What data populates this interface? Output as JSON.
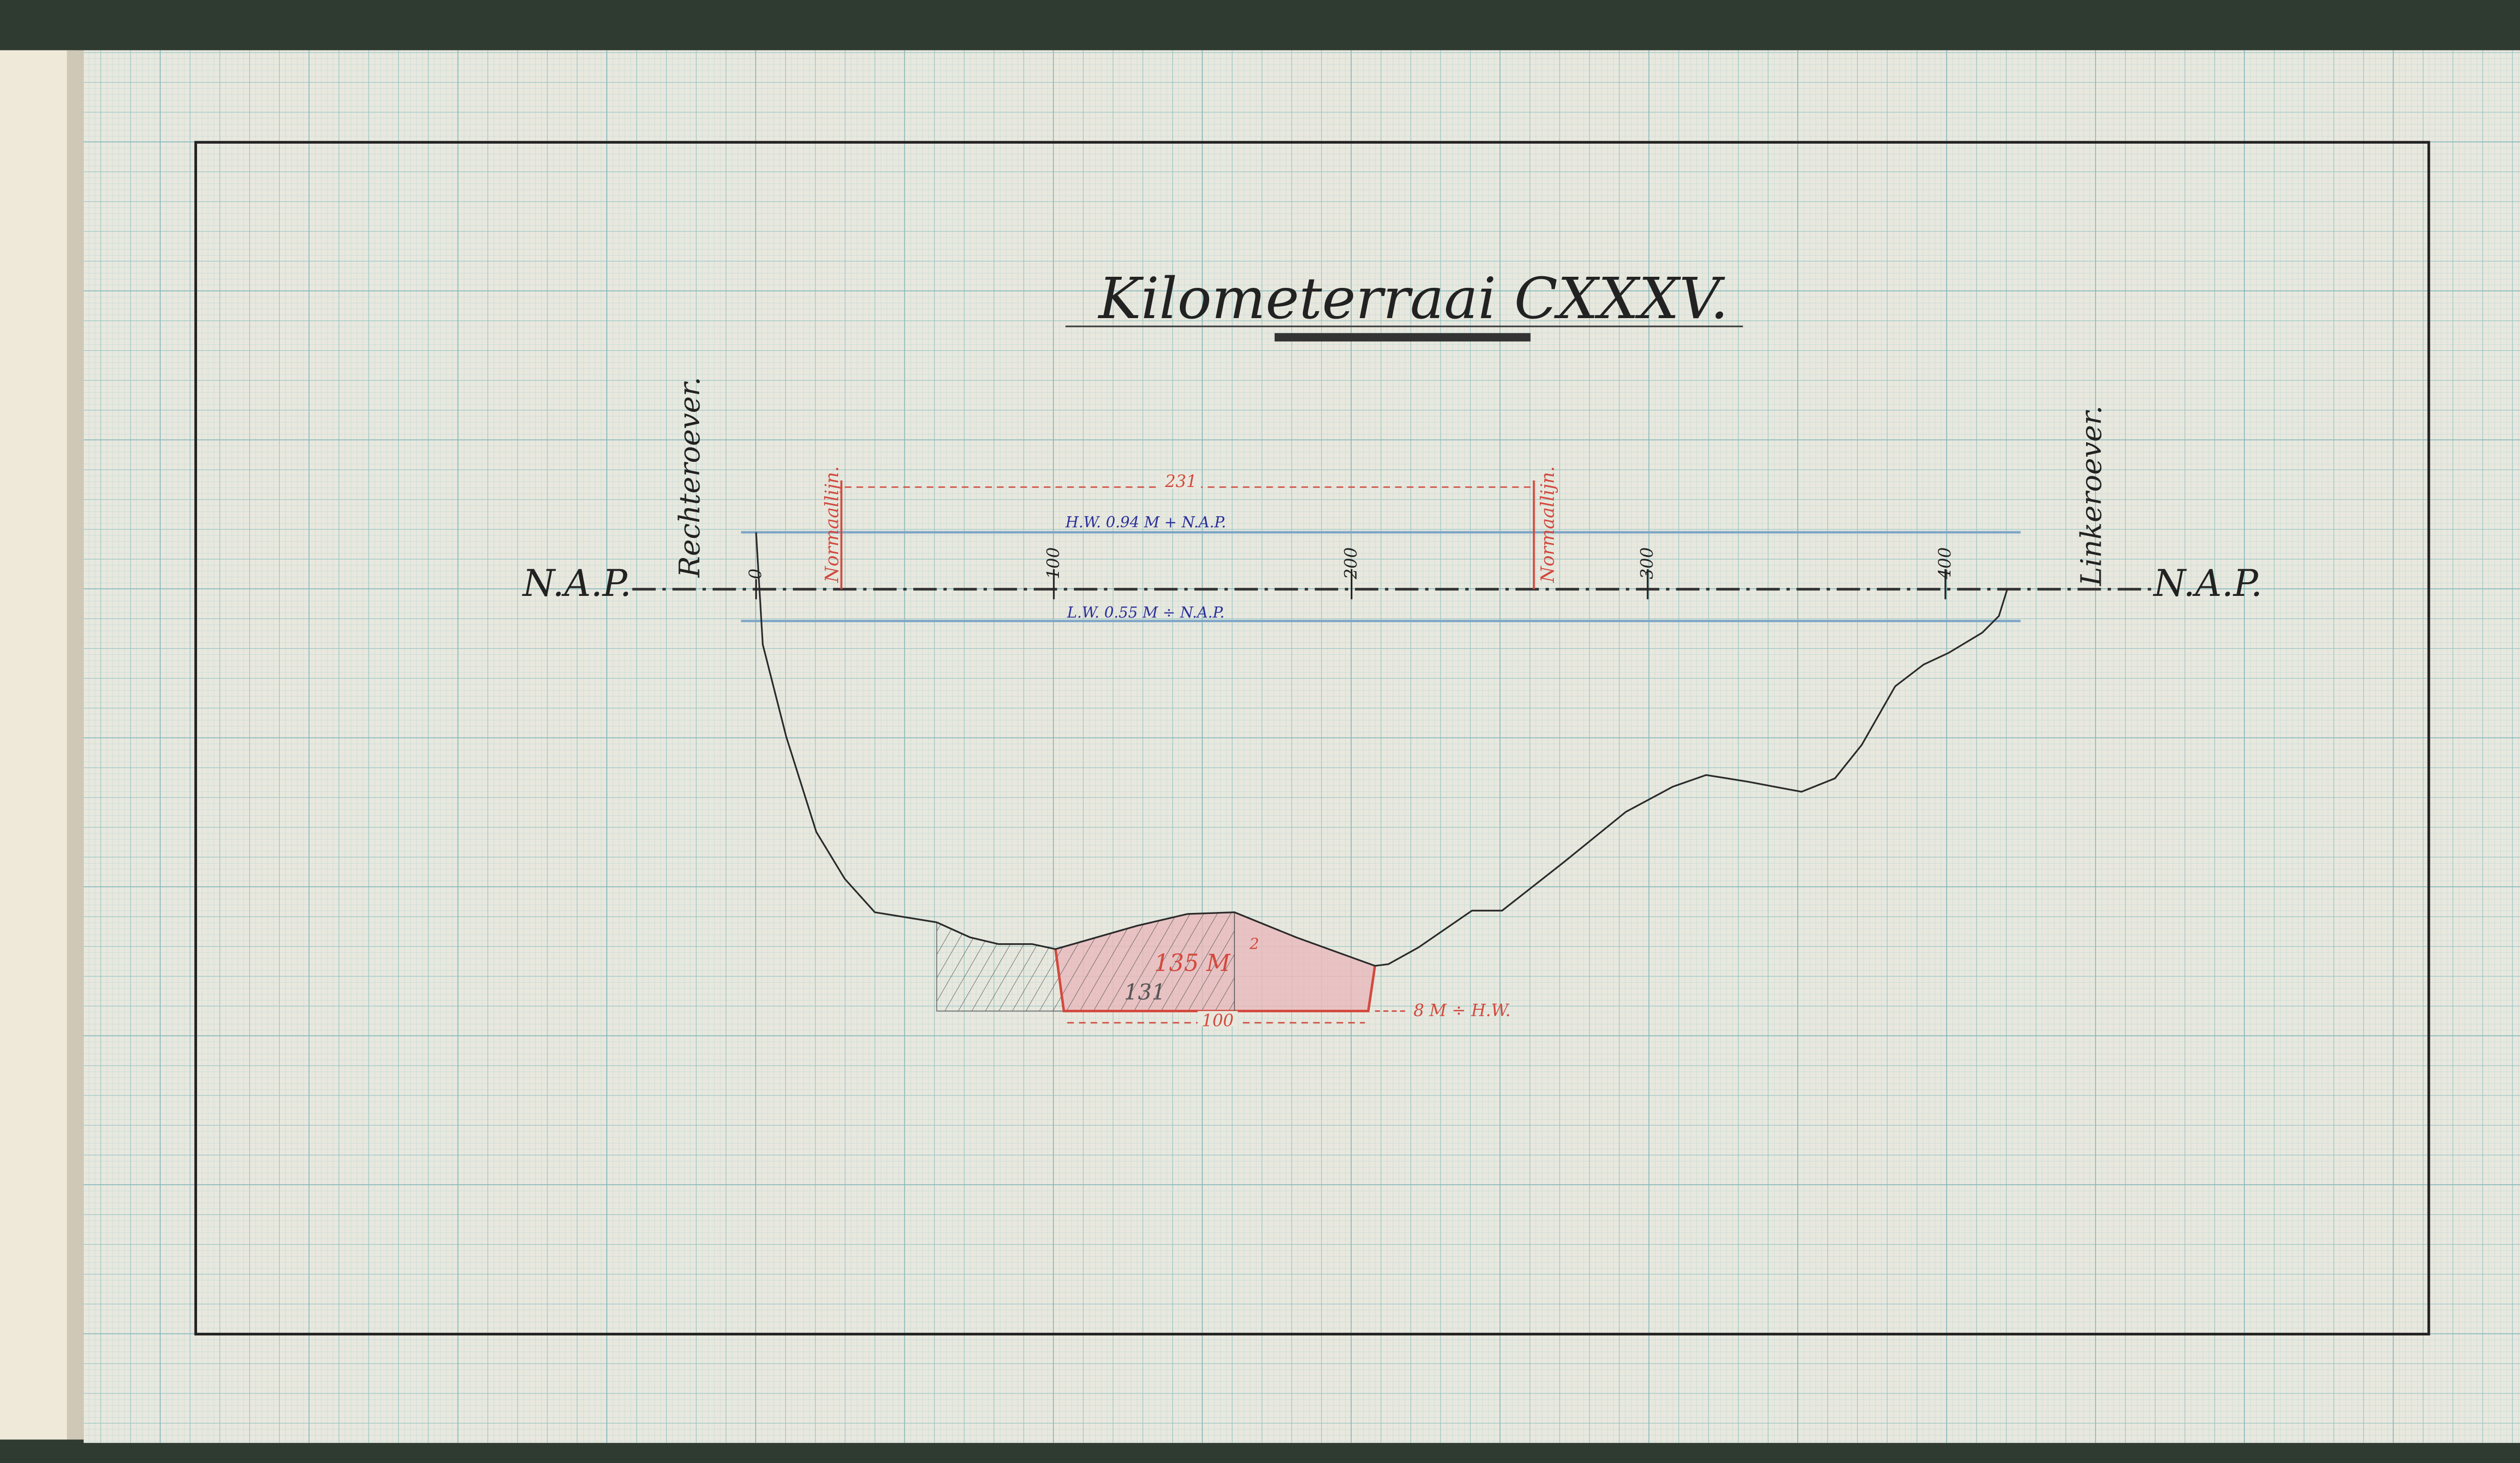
{
  "title": "Kilometerraai CXXXV.",
  "datum_label_left": "N.A.P.",
  "datum_label_right": "N.A.P.",
  "right_bank_label": "Rechteroever.",
  "left_bank_label": "Linkeroever.",
  "normal_line_left": "Normaallijn.",
  "normal_line_right": "Normaallijn.",
  "normal_width_label": "231",
  "high_water_label": "H.W. 0.94 M + N.A.P.",
  "low_water_label": "L.W. 0.55 M ÷ N.A.P.",
  "distance_ticks": [
    "0",
    "100",
    "200",
    "300",
    "400"
  ],
  "area_label": "135 M",
  "area_superscript": "2",
  "pencil_area_label": "131",
  "depth_label": "8 M ÷ H.W.",
  "bottom_width_label": "100",
  "colors": {
    "paper": "#e9e8de",
    "grid": "#9cc7c6",
    "ink": "#2a2a2a",
    "red_ink": "#d24a3e",
    "blue_ink": "#2b2f9a",
    "water_line": "#7ea6c6",
    "area_fill": "#e8b8bb"
  }
}
